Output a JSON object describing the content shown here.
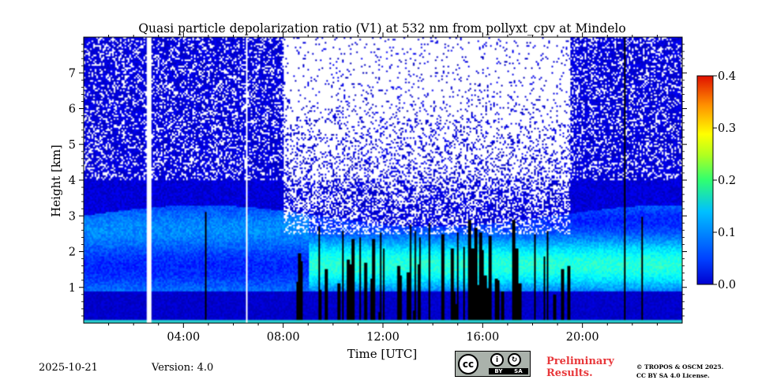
{
  "chart_data": {
    "type": "heatmap",
    "title": "Quasi particle depolarization ratio (V1) at 532 nm from pollyxt_cpv at Mindelo",
    "xlabel": "Time [UTC]",
    "ylabel": "Height [km]",
    "x_ticks": [
      "04:00",
      "08:00",
      "12:00",
      "16:00",
      "20:00"
    ],
    "x_tick_hours": [
      4,
      8,
      12,
      16,
      20
    ],
    "xlim_hours": [
      0,
      24
    ],
    "y_ticks": [
      1,
      2,
      3,
      4,
      5,
      6,
      7
    ],
    "ylim_km": [
      0,
      8
    ],
    "colorbar": {
      "min": 0.0,
      "max": 0.4,
      "ticks": [
        "0.0",
        "0.1",
        "0.2",
        "0.3",
        "0.4"
      ],
      "tick_values": [
        0.0,
        0.1,
        0.2,
        0.3,
        0.4
      ],
      "colormap": "jet",
      "placement": "right"
    },
    "layers": [
      {
        "description": "depolarizing aerosol layer",
        "time_start_h": 0,
        "time_end_h": 24,
        "height_bottom_km": 1.2,
        "height_top_km": 3.3,
        "peak_value": 0.15
      },
      {
        "description": "marine boundary layer",
        "time_start_h": 0,
        "time_end_h": 24,
        "height_bottom_km": 0.05,
        "height_top_km": 1.0,
        "peak_value": 0.03
      }
    ],
    "data_gaps_hours": [
      [
        2.5,
        2.7
      ],
      [
        6.5,
        6.6
      ]
    ],
    "grid": false
  },
  "footer": {
    "date": "2025-10-21",
    "version": "Version: 4.0",
    "license_badge": [
      "BY",
      "SA"
    ],
    "preliminary_line1": "Preliminary",
    "preliminary_line2": "Results.",
    "copyright_line1": "© TROPOS & OSCM 2025.",
    "copyright_line2": "CC BY SA 4.0 License."
  }
}
